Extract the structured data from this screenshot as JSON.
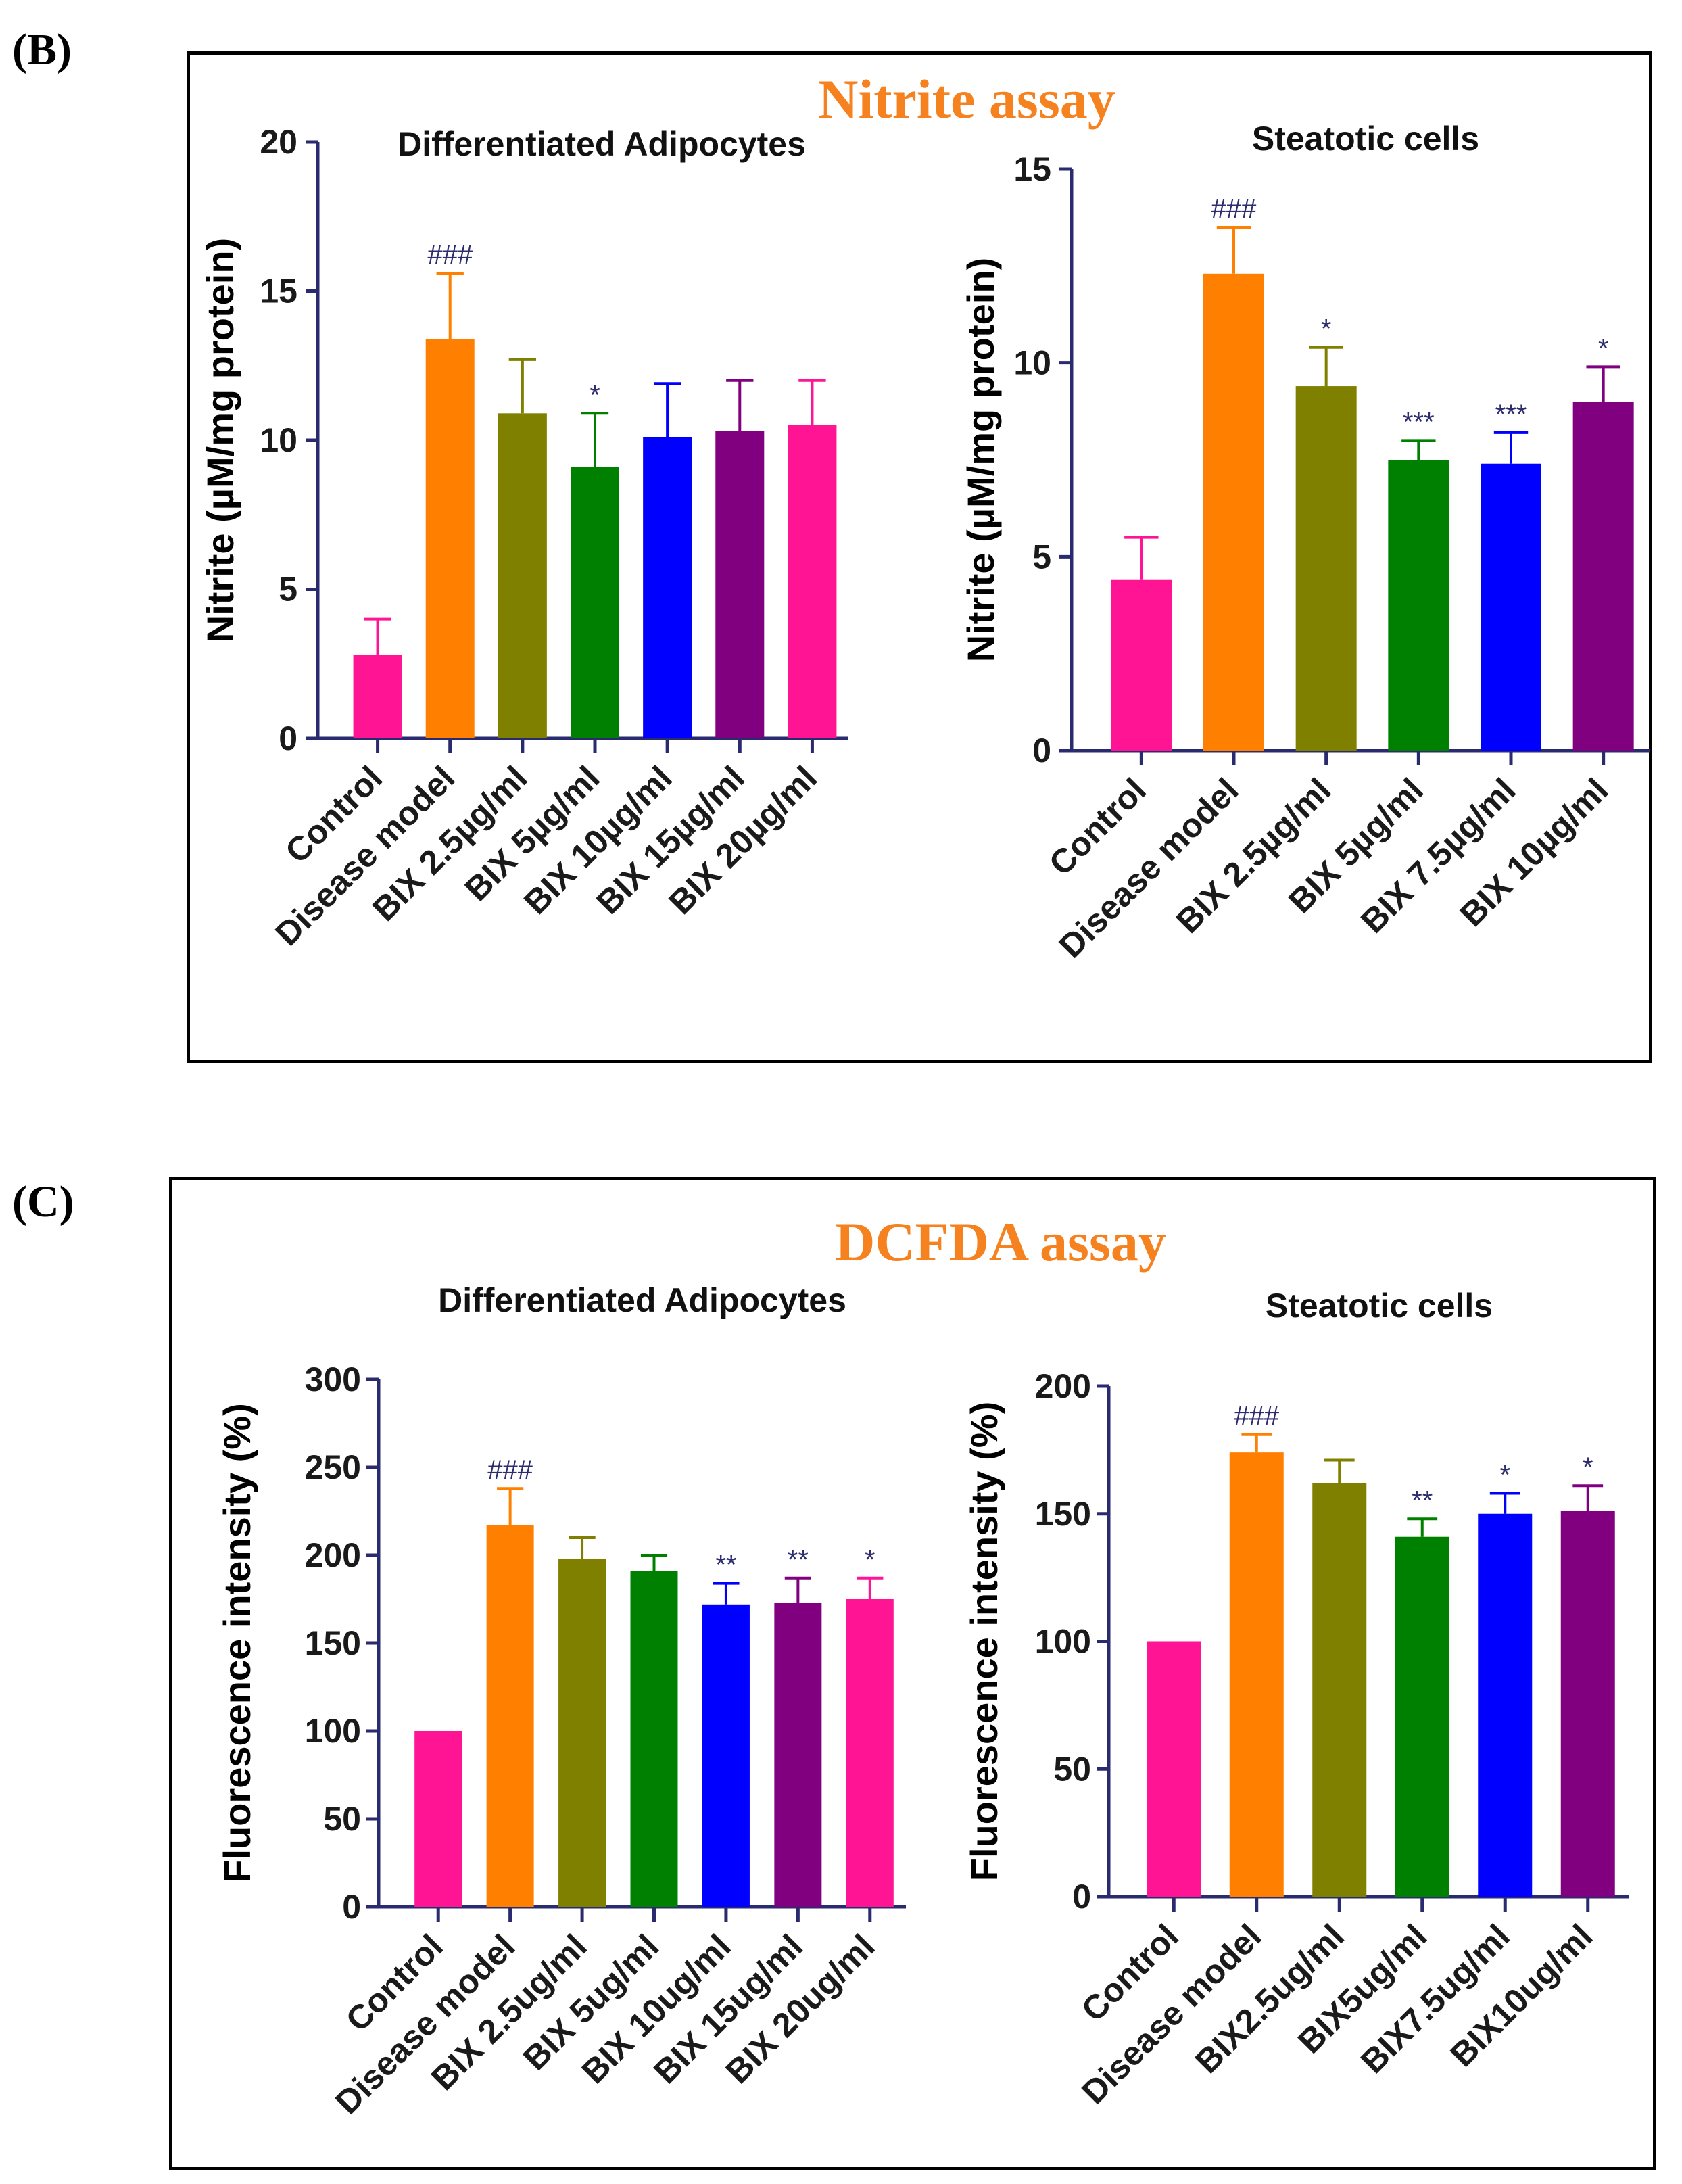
{
  "panels": [
    {
      "letter": "(B)",
      "title": "Nitrite assay",
      "title_color": "#f5821f"
    },
    {
      "letter": "(C)",
      "title": "DCFDA assay",
      "title_color": "#f5821f"
    }
  ],
  "chart_data": [
    {
      "type": "bar",
      "title": "Differentiated Adipocytes",
      "ylabel": "Nitrite (µM/mg protein)",
      "ylim": [
        0,
        20
      ],
      "yticks": [
        0,
        5,
        10,
        15,
        20
      ],
      "categories": [
        "Control",
        "Disease model",
        "BIX 2.5µg/ml",
        "BIX 5µg/ml",
        "BIX 10µg/ml",
        "BIX 15µg/ml",
        "BIX 20µg/ml"
      ],
      "values": [
        2.8,
        13.4,
        10.9,
        9.1,
        10.1,
        10.3,
        10.5
      ],
      "errors": [
        1.2,
        2.2,
        1.8,
        1.8,
        1.8,
        1.7,
        1.5
      ],
      "significance": [
        "",
        "###",
        "",
        "*",
        "",
        "",
        ""
      ],
      "colors": [
        "#ff1493",
        "#ff8000",
        "#808000",
        "#008000",
        "#0000ff",
        "#800080",
        "#ff1493"
      ]
    },
    {
      "type": "bar",
      "title": "Steatotic cells",
      "ylabel": "Nitrite (µM/mg protein)",
      "ylim": [
        0,
        15
      ],
      "yticks": [
        0,
        5,
        10,
        15
      ],
      "categories": [
        "Control",
        "Disease model",
        "BIX 2.5µg/ml",
        "BIX 5µg/ml",
        "BIX 7.5µg/ml",
        "BIX 10µg/ml"
      ],
      "values": [
        4.4,
        12.3,
        9.4,
        7.5,
        7.4,
        9.0
      ],
      "errors": [
        1.1,
        1.2,
        1.0,
        0.5,
        0.8,
        0.9
      ],
      "significance": [
        "",
        "###",
        "*",
        "***",
        "***",
        "*"
      ],
      "colors": [
        "#ff1493",
        "#ff8000",
        "#808000",
        "#008000",
        "#0000ff",
        "#800080"
      ]
    },
    {
      "type": "bar",
      "title": "Differentiated Adipocytes",
      "ylabel": "Fluorescence intensity (%)",
      "ylim": [
        0,
        300
      ],
      "yticks": [
        0,
        50,
        100,
        150,
        200,
        250,
        300
      ],
      "categories": [
        "Control",
        "Disease model",
        "BIX 2.5ug/ml",
        "BIX 5ug/ml",
        "BIX 10ug/ml",
        "BIX 15ug/ml",
        "BIX 20ug/ml"
      ],
      "values": [
        100,
        217,
        198,
        191,
        172,
        173,
        175
      ],
      "errors": [
        0,
        21,
        12,
        9,
        12,
        14,
        12
      ],
      "significance": [
        "",
        "###",
        "",
        "",
        "**",
        "**",
        "*"
      ],
      "colors": [
        "#ff1493",
        "#ff8000",
        "#808000",
        "#008000",
        "#0000ff",
        "#800080",
        "#ff1493"
      ]
    },
    {
      "type": "bar",
      "title": "Steatotic cells",
      "ylabel": "Fluorescence intensity (%)",
      "ylim": [
        0,
        200
      ],
      "yticks": [
        0,
        50,
        100,
        150,
        200
      ],
      "categories": [
        "Control",
        "Disease model",
        "BIX2.5ug/ml",
        "BIX5ug/ml",
        "BIX7.5ug/ml",
        "BIX10ug/ml"
      ],
      "values": [
        100,
        174,
        162,
        141,
        150,
        151
      ],
      "errors": [
        0,
        7,
        9,
        7,
        8,
        10
      ],
      "significance": [
        "",
        "###",
        "",
        "**",
        "*",
        "*"
      ],
      "colors": [
        "#ff1493",
        "#ff8000",
        "#808000",
        "#008000",
        "#0000ff",
        "#800080"
      ]
    }
  ]
}
